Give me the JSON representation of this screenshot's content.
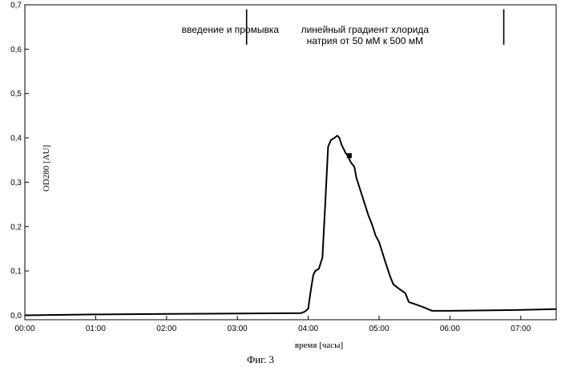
{
  "chart_data": {
    "type": "line",
    "caption": "Фиг. 3",
    "xlabel": "время [часы]",
    "ylabel": "OD280 [AU]",
    "xlim": [
      0.0,
      7.5
    ],
    "ylim": [
      -0.01,
      0.7
    ],
    "x_tick_labels": [
      "00:00",
      "01:00",
      "02:00",
      "03:00",
      "04:00",
      "05:00",
      "06:00",
      "07:00"
    ],
    "x_tick_values": [
      0,
      1,
      2,
      3,
      4,
      5,
      6,
      7
    ],
    "y_tick_labels": [
      "0,0",
      "0,1",
      "0,2",
      "0,3",
      "0,4",
      "0,5",
      "0,6",
      "0,7"
    ],
    "y_tick_values": [
      0.0,
      0.1,
      0.2,
      0.3,
      0.4,
      0.5,
      0.6,
      0.7
    ],
    "grid": false,
    "annotations": [
      {
        "text_lines": [
          "введение и промывка"
        ],
        "x": 2.9
      },
      {
        "text_lines": [
          "линейный градиент хлорида",
          "натрия от 50 мМ к 500 мМ"
        ],
        "x": 4.8
      }
    ],
    "markers": [
      3.13,
      6.76
    ],
    "series": [
      {
        "x": [
          0.0,
          1.0,
          2.0,
          3.0,
          3.9,
          3.95,
          4.0,
          4.03,
          4.07,
          4.1,
          4.15,
          4.2,
          4.24,
          4.28,
          4.32,
          4.37,
          4.41,
          4.44,
          4.47,
          4.5,
          4.53,
          4.56,
          4.6,
          4.65,
          4.68,
          4.72,
          4.76,
          4.8,
          4.85,
          4.9,
          4.95,
          5.0,
          5.05,
          5.1,
          5.15,
          5.2,
          5.28,
          5.37,
          5.42,
          5.6,
          5.75,
          6.0,
          7.0,
          7.5
        ],
        "values": [
          0.0,
          0.002,
          0.003,
          0.004,
          0.005,
          0.008,
          0.015,
          0.05,
          0.09,
          0.1,
          0.105,
          0.13,
          0.25,
          0.38,
          0.395,
          0.4,
          0.405,
          0.4,
          0.385,
          0.375,
          0.365,
          0.36,
          0.345,
          0.335,
          0.31,
          0.29,
          0.27,
          0.25,
          0.225,
          0.205,
          0.18,
          0.165,
          0.14,
          0.115,
          0.09,
          0.07,
          0.06,
          0.05,
          0.03,
          0.02,
          0.01,
          0.01,
          0.012,
          0.014
        ]
      }
    ],
    "point_marker": {
      "x": 4.58,
      "y": 0.36
    }
  }
}
